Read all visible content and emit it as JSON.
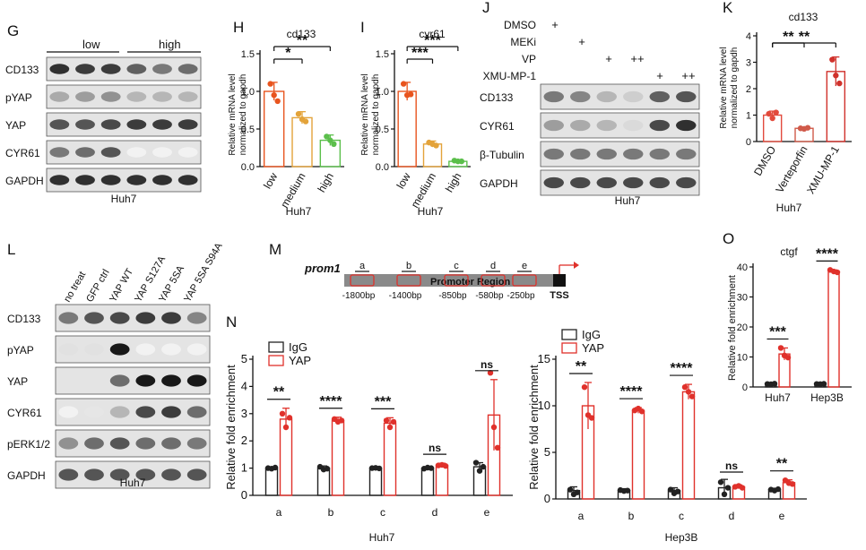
{
  "panels": {
    "G": {
      "letter": "G",
      "group_labels": [
        "low",
        "high"
      ],
      "rows": [
        "CD133",
        "pYAP",
        "YAP",
        "CYR61",
        "GAPDH"
      ],
      "cell_line": "Huh7"
    },
    "J": {
      "letter": "J",
      "treatments": [
        {
          "label": "DMSO",
          "marks": [
            "+",
            "",
            "",
            "",
            "",
            ""
          ]
        },
        {
          "label": "MEKi",
          "marks": [
            "",
            "+",
            "",
            "",
            "",
            ""
          ]
        },
        {
          "label": "VP",
          "marks": [
            "",
            "",
            "+",
            "++",
            "",
            ""
          ]
        },
        {
          "label": "XMU-MP-1",
          "marks": [
            "",
            "",
            "",
            "",
            "+",
            "++"
          ]
        }
      ],
      "rows": [
        "CD133",
        "CYR61",
        "β-Tubulin",
        "GAPDH"
      ],
      "cell_line": "Huh7"
    },
    "L": {
      "letter": "L",
      "lanes": [
        "no treat",
        "GFP ctrl",
        "YAP WT",
        "YAP S127A",
        "YAP 5SA",
        "YAP 5SA S94A"
      ],
      "rows": [
        "CD133",
        "pYAP",
        "YAP",
        "CYR61",
        "pERK1/2",
        "GAPDH"
      ],
      "cell_line": "Huh7"
    },
    "M": {
      "letter": "M",
      "gene": "prom1",
      "region_label": "Promoter Region",
      "site_letters": [
        "a",
        "b",
        "c",
        "d",
        "e"
      ],
      "positions": [
        "-1800bp",
        "-1400bp",
        "-850bp",
        "-580bp",
        "-250bp"
      ],
      "tss": "TSS"
    },
    "N": {
      "letter": "N",
      "legend": [
        "IgG",
        "YAP"
      ]
    },
    "H": {
      "letter": "H"
    },
    "I": {
      "letter": "I"
    },
    "K": {
      "letter": "K"
    },
    "O": {
      "letter": "O"
    }
  },
  "colors": {
    "igg": "#222222",
    "yap": "#e0312b",
    "low": "#e8541e",
    "medium": "#e3a33a",
    "high": "#5bbf4b",
    "verteporfin": "#d05a4a",
    "xmu": "#d0312b"
  },
  "chart_data": [
    {
      "id": "H",
      "type": "bar",
      "title": "cd133",
      "ylabel": "Relative mRNA level normalized to gapdh",
      "xlabel": "Huh7",
      "categories": [
        "low",
        "medium",
        "high"
      ],
      "values": [
        1.0,
        0.65,
        0.35
      ],
      "errors": [
        0.12,
        0.08,
        0.07
      ],
      "points": [
        [
          1.1,
          0.95,
          0.87
        ],
        [
          0.7,
          0.63,
          0.6
        ],
        [
          0.4,
          0.35,
          0.3
        ]
      ],
      "ylim": [
        0,
        1.5
      ],
      "yticks": [
        "0.0",
        "0.5",
        "1.0",
        "1.5"
      ],
      "annotations": [
        {
          "from": 0,
          "to": 1,
          "label": "*"
        },
        {
          "from": 0,
          "to": 2,
          "label": "**"
        }
      ]
    },
    {
      "id": "I",
      "type": "bar",
      "title": "cyr61",
      "ylabel": "Relative mRNA level normalized to gapdh",
      "xlabel": "Huh7",
      "categories": [
        "low",
        "medium",
        "high"
      ],
      "values": [
        1.0,
        0.3,
        0.07
      ],
      "errors": [
        0.12,
        0.04,
        0.02
      ],
      "points": [
        [
          1.1,
          0.95,
          0.96
        ],
        [
          0.32,
          0.3,
          0.28
        ],
        [
          0.08,
          0.07,
          0.07
        ]
      ],
      "ylim": [
        0,
        1.5
      ],
      "yticks": [
        "0.0",
        "0.5",
        "1.0",
        "1.5"
      ],
      "annotations": [
        {
          "from": 0,
          "to": 1,
          "label": "***"
        },
        {
          "from": 0,
          "to": 2,
          "label": "***"
        }
      ]
    },
    {
      "id": "K",
      "type": "bar",
      "title": "cd133",
      "ylabel": "Relative mRNA level normalized to gapdh",
      "xlabel": "Huh7",
      "categories": [
        "DMSO",
        "Verteporfin",
        "XMU-MP-1"
      ],
      "values": [
        1.0,
        0.5,
        2.65
      ],
      "errors": [
        0.15,
        0.05,
        0.55
      ],
      "points": [
        [
          1.05,
          0.88,
          1.1
        ],
        [
          0.5,
          0.48,
          0.52
        ],
        [
          3.1,
          2.5,
          2.2
        ]
      ],
      "ylim": [
        0,
        4
      ],
      "yticks": [
        "0",
        "1",
        "2",
        "3",
        "4"
      ],
      "annotations": [
        {
          "from": 0,
          "to": 1,
          "label": "**"
        },
        {
          "from": 0,
          "to": 2,
          "label": "**"
        }
      ]
    },
    {
      "id": "N-Huh7",
      "type": "bar",
      "ylabel": "Relative fold enrichment",
      "xlabel": "Huh7",
      "categories": [
        "a",
        "b",
        "c",
        "d",
        "e"
      ],
      "series": [
        {
          "name": "IgG",
          "values": [
            1.0,
            1.0,
            1.0,
            1.0,
            1.05
          ],
          "errors": [
            0.05,
            0.08,
            0.03,
            0.05,
            0.15
          ],
          "points": [
            [
              1.0,
              0.98,
              1.02
            ],
            [
              1.05,
              0.95,
              0.98
            ],
            [
              1.0,
              1.01,
              0.99
            ],
            [
              0.98,
              1.02,
              1.0
            ],
            [
              1.2,
              0.9,
              1.05
            ]
          ]
        },
        {
          "name": "YAP",
          "values": [
            2.8,
            2.75,
            2.65,
            1.1,
            2.95
          ],
          "errors": [
            0.4,
            0.12,
            0.2,
            0.08,
            1.3
          ],
          "points": [
            [
              3.0,
              2.5,
              2.85
            ],
            [
              2.8,
              2.7,
              2.75
            ],
            [
              2.75,
              2.5,
              2.7
            ],
            [
              1.1,
              1.12,
              1.08
            ],
            [
              4.5,
              2.5,
              1.75
            ]
          ]
        }
      ],
      "ylim": [
        0,
        5
      ],
      "yticks": [
        "0",
        "1",
        "2",
        "3",
        "4",
        "5"
      ],
      "annotations": [
        "**",
        "****",
        "***",
        "ns",
        "ns"
      ]
    },
    {
      "id": "N-Hep3B",
      "type": "bar",
      "ylabel": "Relative fold enrichment",
      "xlabel": "Hep3B",
      "categories": [
        "a",
        "b",
        "c",
        "d",
        "e"
      ],
      "series": [
        {
          "name": "IgG",
          "values": [
            0.9,
            0.9,
            0.9,
            1.2,
            1.0
          ],
          "errors": [
            0.4,
            0.2,
            0.3,
            0.9,
            0.15
          ],
          "points": [
            [
              1.0,
              0.5,
              0.7
            ],
            [
              0.95,
              0.85,
              0.9
            ],
            [
              1.0,
              0.6,
              0.8
            ],
            [
              1.8,
              0.5,
              1.2
            ],
            [
              1.0,
              0.9,
              1.05
            ]
          ]
        },
        {
          "name": "YAP",
          "values": [
            10.0,
            9.5,
            11.5,
            1.3,
            1.75
          ],
          "errors": [
            2.5,
            0.3,
            0.8,
            0.2,
            0.3
          ],
          "points": [
            [
              12.0,
              9.0,
              8.7
            ],
            [
              9.5,
              9.7,
              9.4
            ],
            [
              12.0,
              11.5,
              11.0
            ],
            [
              1.3,
              1.4,
              1.2
            ],
            [
              2.0,
              1.7,
              1.6
            ]
          ]
        }
      ],
      "ylim": [
        0,
        15
      ],
      "yticks": [
        "0",
        "5",
        "10",
        "15"
      ],
      "annotations": [
        "**",
        "****",
        "****",
        "ns",
        "**"
      ]
    },
    {
      "id": "O",
      "type": "bar",
      "title": "ctgf",
      "ylabel": "Relative fold enrichment",
      "categories": [
        "Huh7",
        "Hep3B"
      ],
      "series": [
        {
          "name": "IgG",
          "values": [
            1.0,
            1.0
          ],
          "errors": [
            0.1,
            0.1
          ],
          "points": [
            [
              1.0,
              0.9,
              1.1
            ],
            [
              1.0,
              0.95,
              1.05
            ]
          ]
        },
        {
          "name": "YAP",
          "values": [
            11.0,
            38.5
          ],
          "errors": [
            2.0,
            0.5
          ],
          "points": [
            [
              13.0,
              10.5,
              9.8
            ],
            [
              39.0,
              38.5,
              38.2
            ]
          ]
        }
      ],
      "ylim": [
        0,
        40
      ],
      "yticks": [
        "0",
        "10",
        "20",
        "30",
        "40"
      ],
      "annotations": [
        "***",
        "****"
      ]
    }
  ]
}
